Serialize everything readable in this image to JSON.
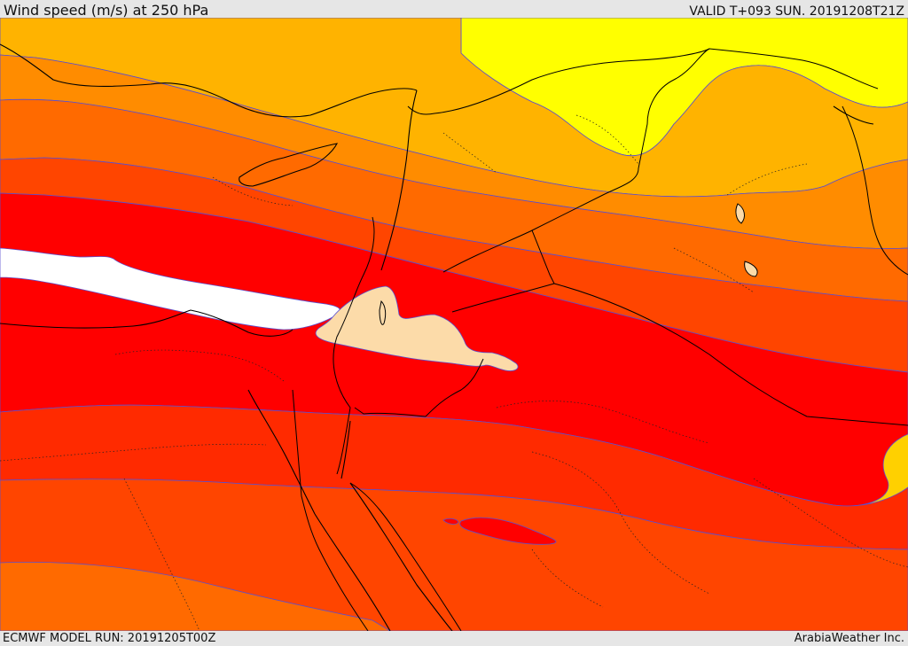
{
  "header": {
    "title": "Wind speed (m/s) at 250 hPa",
    "valid": "VALID T+093 SUN. 20191208T21Z"
  },
  "footer": {
    "model_run": "ECMWF MODEL RUN: 20191205T00Z",
    "credit": "ArabiaWeather Inc."
  },
  "map": {
    "variable": "wind speed",
    "units": "m/s",
    "pressure_level": "250 hPa",
    "fill_colors": {
      "weakest": "#ffff00",
      "yellow_orange": "#ffd000",
      "light_orange": "#ffb300",
      "orange": "#ff8c00",
      "dark_orange": "#ff6a00",
      "red_orange": "#ff4500",
      "red": "#ff0000",
      "jet_core_cream": "#fcdba9",
      "jet_core_white": "#ffffff"
    },
    "contour_color": "#5a4fd0",
    "coastline_color": "#000000"
  }
}
